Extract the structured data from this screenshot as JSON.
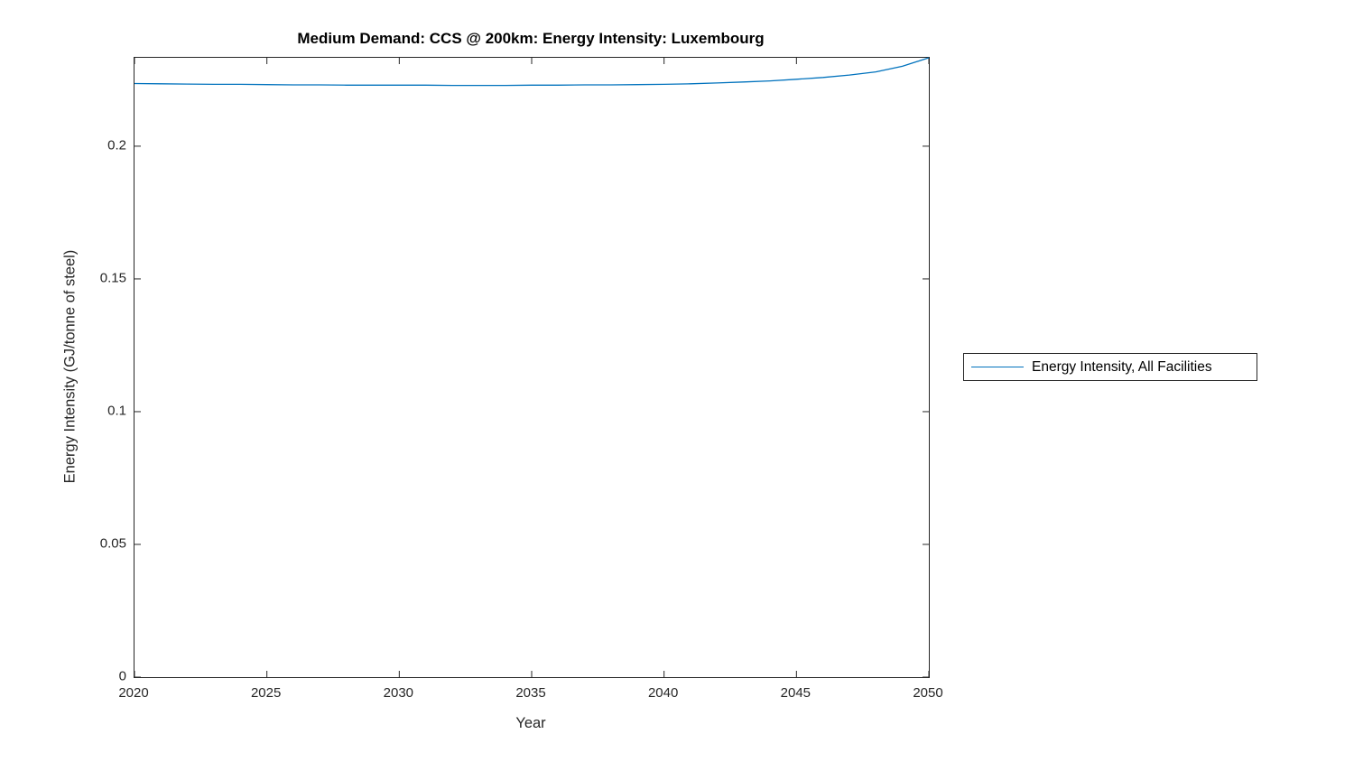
{
  "figure": {
    "background": "#ffffff",
    "axis_color": "#262626",
    "title_color": "#000000"
  },
  "chart_data": {
    "type": "line",
    "title": "Medium Demand: CCS @ 200km: Energy Intensity: Luxembourg",
    "xlabel": "Year",
    "ylabel": "Energy Intensity (GJ/tonne of steel)",
    "grid": false,
    "xlim": [
      2020,
      2050
    ],
    "ylim": [
      0,
      0.2333
    ],
    "xticks": {
      "values": [
        2020,
        2025,
        2030,
        2035,
        2040,
        2045,
        2050
      ],
      "labels": [
        "2020",
        "2025",
        "2030",
        "2035",
        "2040",
        "2045",
        "2050"
      ]
    },
    "yticks": {
      "values": [
        0,
        0.05,
        0.1,
        0.15,
        0.2
      ],
      "labels": [
        "0",
        "0.05",
        "0.1",
        "0.15",
        "0.2"
      ]
    },
    "x": [
      2020,
      2021,
      2022,
      2023,
      2024,
      2025,
      2026,
      2027,
      2028,
      2029,
      2030,
      2031,
      2032,
      2033,
      2034,
      2035,
      2036,
      2037,
      2038,
      2039,
      2040,
      2041,
      2042,
      2043,
      2044,
      2045,
      2046,
      2047,
      2048,
      2049,
      2050
    ],
    "series": [
      {
        "name": "Energy Intensity, All Facilities",
        "color": "#0072BD",
        "values": [
          0.2236,
          0.2235,
          0.2234,
          0.2233,
          0.2233,
          0.2232,
          0.2231,
          0.2231,
          0.223,
          0.223,
          0.223,
          0.223,
          0.2229,
          0.2229,
          0.2229,
          0.223,
          0.223,
          0.2231,
          0.2231,
          0.2232,
          0.2233,
          0.2235,
          0.2238,
          0.2242,
          0.2246,
          0.2252,
          0.2259,
          0.2268,
          0.228,
          0.2301,
          0.2333
        ]
      }
    ],
    "legend_position": "right-outside"
  },
  "legend": {
    "entries": [
      {
        "label": "Energy Intensity, All Facilities",
        "color": "#0072BD"
      }
    ]
  }
}
